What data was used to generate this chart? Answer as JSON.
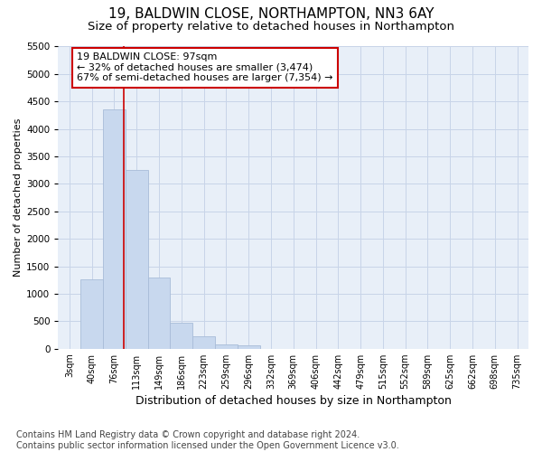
{
  "title_line1": "19, BALDWIN CLOSE, NORTHAMPTON, NN3 6AY",
  "title_line2": "Size of property relative to detached houses in Northampton",
  "xlabel": "Distribution of detached houses by size in Northampton",
  "ylabel": "Number of detached properties",
  "footnote": "Contains HM Land Registry data © Crown copyright and database right 2024.\nContains public sector information licensed under the Open Government Licence v3.0.",
  "categories": [
    "3sqm",
    "40sqm",
    "76sqm",
    "113sqm",
    "149sqm",
    "186sqm",
    "223sqm",
    "259sqm",
    "296sqm",
    "332sqm",
    "369sqm",
    "406sqm",
    "442sqm",
    "479sqm",
    "515sqm",
    "552sqm",
    "589sqm",
    "625sqm",
    "662sqm",
    "698sqm",
    "735sqm"
  ],
  "values": [
    0,
    1270,
    4350,
    3250,
    1300,
    480,
    230,
    80,
    60,
    0,
    0,
    0,
    0,
    0,
    0,
    0,
    0,
    0,
    0,
    0,
    0
  ],
  "bar_color": "#c8d8ee",
  "bar_edge_color": "#a8bcd8",
  "vline_pos": 2.43,
  "vline_color": "#cc0000",
  "annotation_text": "19 BALDWIN CLOSE: 97sqm\n← 32% of detached houses are smaller (3,474)\n67% of semi-detached houses are larger (7,354) →",
  "annotation_box_color": "white",
  "annotation_box_edge": "#cc0000",
  "ylim": [
    0,
    5500
  ],
  "yticks": [
    0,
    500,
    1000,
    1500,
    2000,
    2500,
    3000,
    3500,
    4000,
    4500,
    5000,
    5500
  ],
  "grid_color": "#c8d4e8",
  "background_color": "#e8eff8",
  "title1_fontsize": 11,
  "title2_fontsize": 9.5,
  "xlabel_fontsize": 9,
  "ylabel_fontsize": 8,
  "annotation_fontsize": 8,
  "footnote_fontsize": 7
}
